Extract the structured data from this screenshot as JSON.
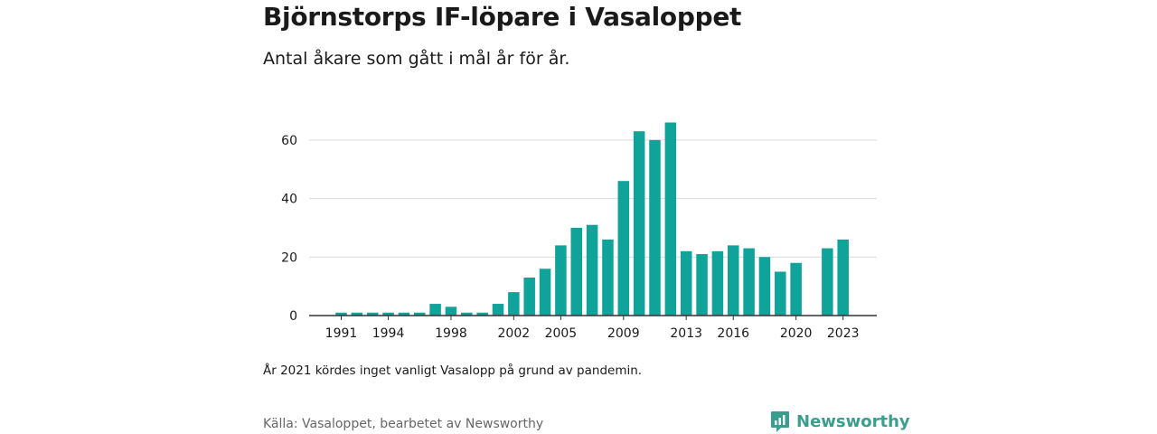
{
  "title": "Björnstorps IF-löpare i Vasaloppet",
  "subtitle": "Antal åkare som gått i mål år för år.",
  "note": "År 2021 kördes inget vanligt Vasalopp på grund av pandemin.",
  "source": "Källa: Vasaloppet, bearbetet av Newsworthy",
  "brand": {
    "name": "Newsworthy",
    "color": "#3a9e8f",
    "icon": "bar-chart-logo-icon"
  },
  "chart_data": {
    "type": "bar",
    "title": "Björnstorps IF-löpare i Vasaloppet",
    "bar_color": "#0fa399",
    "grid": true,
    "ylim": [
      0,
      70
    ],
    "y_ticks": [
      0,
      20,
      40,
      60
    ],
    "x_tick_labels": [
      "1991",
      "1994",
      "1998",
      "2002",
      "2005",
      "2009",
      "2013",
      "2016",
      "2020",
      "2023"
    ],
    "categories": [
      "1991",
      "1992",
      "1993",
      "1994",
      "1995",
      "1996",
      "1997",
      "1998",
      "1999",
      "2000",
      "2001",
      "2002",
      "2003",
      "2004",
      "2005",
      "2006",
      "2007",
      "2008",
      "2009",
      "2010",
      "2011",
      "2012",
      "2013",
      "2014",
      "2015",
      "2016",
      "2017",
      "2018",
      "2019",
      "2020",
      "2021",
      "2022",
      "2023"
    ],
    "values": [
      1,
      1,
      1,
      1,
      1,
      1,
      4,
      3,
      1,
      1,
      4,
      8,
      13,
      16,
      24,
      30,
      31,
      26,
      46,
      63,
      60,
      66,
      22,
      21,
      22,
      24,
      23,
      20,
      15,
      18,
      0,
      23,
      26
    ]
  }
}
